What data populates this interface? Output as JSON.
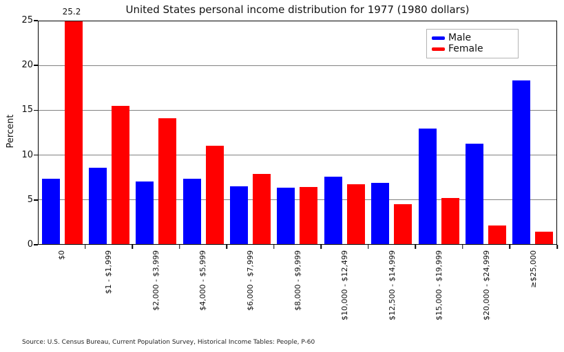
{
  "chart_data": {
    "type": "bar",
    "title": "United States personal income distribution for 1977 (1980 dollars)",
    "ylabel": "Percent",
    "xlabel": "",
    "categories": [
      "$0",
      "$1 - $1,999",
      "$2,000 - $3,999",
      "$4,000 - $5,999",
      "$6,000 - $7,999",
      "$8,000 - $9,999",
      "$10,000 - $12,499",
      "$12,500 - $14,999",
      "$15,000 - $19,999",
      "$20,000 - $24,999",
      "≥$25,000"
    ],
    "series": [
      {
        "name": "Male",
        "color": "#0000ff",
        "values": [
          7.3,
          8.6,
          7.0,
          7.3,
          6.5,
          6.3,
          7.6,
          6.9,
          13.0,
          11.3,
          18.4
        ]
      },
      {
        "name": "Female",
        "color": "#ff0000",
        "values": [
          25.2,
          15.5,
          14.1,
          11.0,
          7.9,
          6.4,
          6.7,
          4.5,
          5.2,
          2.1,
          1.4
        ]
      }
    ],
    "ylim": [
      0,
      25
    ],
    "yticks": [
      0,
      5,
      10,
      15,
      20,
      25
    ],
    "grid": true,
    "legend_position": "upper right",
    "annotation": {
      "text": "25.2",
      "series": "Female",
      "category": "$0"
    },
    "source": "Source: U.S. Census Bureau, Current Population Survey, Historical Income Tables: People, P-60"
  }
}
